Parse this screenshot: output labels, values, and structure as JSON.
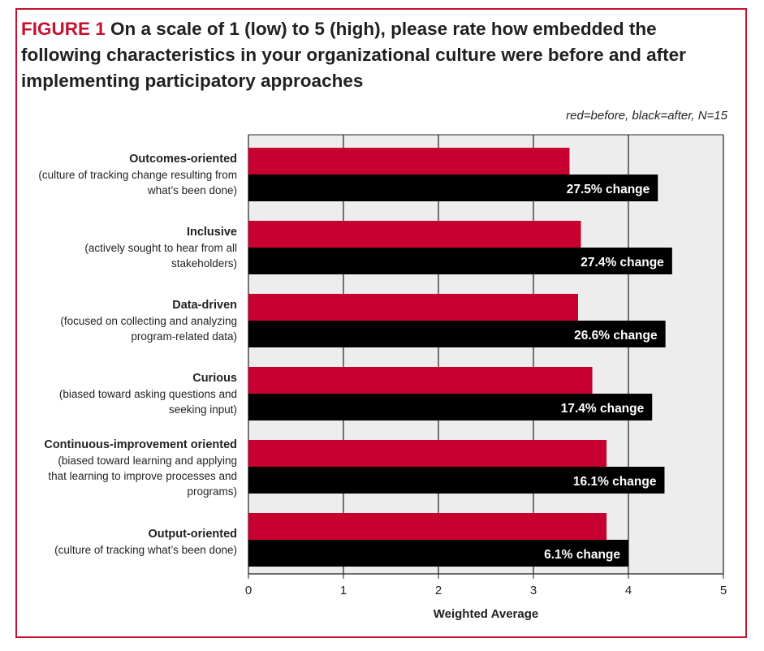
{
  "figure": {
    "label": "FIGURE 1",
    "title": "On a scale of 1 (low) to 5 (high), please rate how embedded the following characteristics in your organizational culture were before and after implementing participatory approaches",
    "note": "red=before, black=after, N=15"
  },
  "colors": {
    "before": "#c8002f",
    "after": "#000000",
    "plot_background": "#ededed",
    "frame": "#c8102e"
  },
  "categories": [
    {
      "name": "Outcomes-oriented",
      "desc": "(culture of tracking change resulting from what’s been done)"
    },
    {
      "name": "Inclusive",
      "desc": "(actively sought to hear from all stakeholders)"
    },
    {
      "name": "Data-driven",
      "desc": "(focused on collecting and analyzing program-related data)"
    },
    {
      "name": "Curious",
      "desc": "(biased toward asking questions and seeking input)"
    },
    {
      "name": "Continuous-improvement oriented",
      "desc": "(biased toward learning and applying that learning to improve processes and programs)"
    },
    {
      "name": "Output-oriented",
      "desc": "(culture of tracking what’s been done)"
    }
  ],
  "chart_data": {
    "type": "bar",
    "orientation": "horizontal",
    "categories": [
      "Outcomes-oriented",
      "Inclusive",
      "Data-driven",
      "Curious",
      "Continuous-improvement oriented",
      "Output-oriented"
    ],
    "series": [
      {
        "name": "before",
        "values": [
          3.38,
          3.5,
          3.47,
          3.62,
          3.77,
          3.77
        ]
      },
      {
        "name": "after",
        "values": [
          4.31,
          4.46,
          4.39,
          4.25,
          4.38,
          4.0
        ]
      }
    ],
    "data_labels": [
      "27.5% change",
      "27.4% change",
      "26.6% change",
      "17.4% change",
      "16.1% change",
      "6.1% change"
    ],
    "xlabel": "Weighted Average",
    "xlim": [
      0,
      5
    ],
    "xticks": [
      "0",
      "1",
      "2",
      "3",
      "4",
      "5"
    ],
    "grid": "vertical"
  }
}
